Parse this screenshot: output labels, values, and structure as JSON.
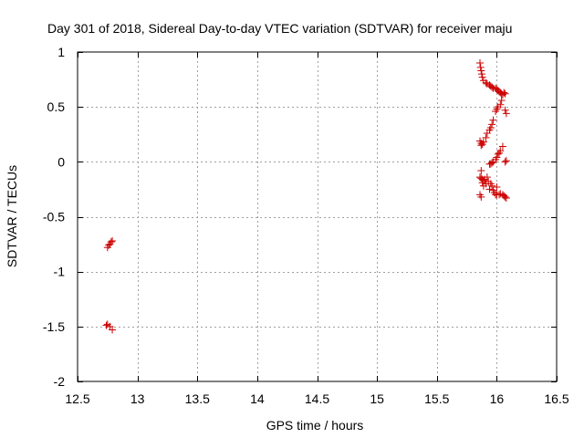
{
  "chart_data": {
    "type": "scatter",
    "title": "Day 301 of 2018, Sidereal Day-to-day VTEC variation (SDTVAR) for receiver maju",
    "xlabel": "GPS time / hours",
    "ylabel": "SDTVAR / TECUs",
    "xlim": [
      12.5,
      16.5
    ],
    "ylim": [
      -2,
      1
    ],
    "xticks": [
      12.5,
      13,
      13.5,
      14,
      14.5,
      15,
      15.5,
      16,
      16.5
    ],
    "xtick_labels": [
      "12.5",
      "13",
      "13.5",
      "14",
      "14.5",
      "15",
      "15.5",
      "16",
      "16.5"
    ],
    "yticks": [
      -2,
      -1.5,
      -1,
      -0.5,
      0,
      0.5,
      1
    ],
    "ytick_labels": [
      "-2",
      "-1.5",
      "-1",
      "-0.5",
      "0",
      "0.5",
      "1"
    ],
    "grid": true,
    "marker": "+",
    "marker_color": "#cc0000",
    "series": [
      {
        "name": "SDTVAR",
        "points": [
          [
            12.75,
            -0.78
          ],
          [
            12.76,
            -0.76
          ],
          [
            12.77,
            -0.75
          ],
          [
            12.78,
            -0.73
          ],
          [
            12.79,
            -0.72
          ],
          [
            12.74,
            -1.49
          ],
          [
            12.75,
            -1.48
          ],
          [
            12.77,
            -1.5
          ],
          [
            12.79,
            -1.53
          ],
          [
            15.86,
            0.9
          ],
          [
            15.865,
            0.86
          ],
          [
            15.87,
            0.83
          ],
          [
            15.875,
            0.8
          ],
          [
            15.88,
            0.77
          ],
          [
            15.89,
            0.74
          ],
          [
            15.91,
            0.72
          ],
          [
            15.92,
            0.71
          ],
          [
            15.94,
            0.7
          ],
          [
            15.95,
            0.69
          ],
          [
            15.96,
            0.68
          ],
          [
            15.97,
            0.67
          ],
          [
            15.99,
            0.67
          ],
          [
            16.0,
            0.66
          ],
          [
            16.01,
            0.65
          ],
          [
            16.02,
            0.64
          ],
          [
            16.03,
            0.63
          ],
          [
            16.04,
            0.62
          ],
          [
            16.05,
            0.61
          ],
          [
            16.06,
            0.63
          ],
          [
            16.07,
            0.62
          ],
          [
            16.04,
            0.56
          ],
          [
            16.03,
            0.52
          ],
          [
            16.07,
            0.47
          ],
          [
            16.08,
            0.44
          ],
          [
            16.01,
            0.5
          ],
          [
            16.0,
            0.48
          ],
          [
            15.99,
            0.46
          ],
          [
            15.97,
            0.38
          ],
          [
            15.96,
            0.34
          ],
          [
            15.95,
            0.31
          ],
          [
            15.94,
            0.29
          ],
          [
            15.92,
            0.26
          ],
          [
            15.91,
            0.22
          ],
          [
            15.86,
            0.19
          ],
          [
            15.87,
            0.17
          ],
          [
            15.88,
            0.16
          ],
          [
            15.89,
            0.18
          ],
          [
            15.87,
            0.15
          ],
          [
            16.05,
            0.14
          ],
          [
            16.03,
            0.1
          ],
          [
            16.02,
            0.08
          ],
          [
            16.01,
            0.07
          ],
          [
            16.0,
            0.04
          ],
          [
            15.99,
            0.02
          ],
          [
            15.97,
            0.0
          ],
          [
            15.96,
            -0.01
          ],
          [
            15.95,
            -0.02
          ],
          [
            15.94,
            -0.02
          ],
          [
            16.07,
            0.0
          ],
          [
            16.08,
            0.01
          ],
          [
            15.87,
            -0.08
          ],
          [
            15.86,
            -0.14
          ],
          [
            15.87,
            -0.15
          ],
          [
            15.88,
            -0.16
          ],
          [
            15.89,
            -0.17
          ],
          [
            15.9,
            -0.16
          ],
          [
            15.88,
            -0.19
          ],
          [
            15.89,
            -0.22
          ],
          [
            15.91,
            -0.2
          ],
          [
            15.92,
            -0.14
          ],
          [
            15.93,
            -0.18
          ],
          [
            15.95,
            -0.2
          ],
          [
            15.96,
            -0.22
          ],
          [
            15.94,
            -0.25
          ],
          [
            15.97,
            -0.26
          ],
          [
            15.98,
            -0.28
          ],
          [
            16.0,
            -0.23
          ],
          [
            15.99,
            -0.3
          ],
          [
            16.0,
            -0.3
          ],
          [
            16.02,
            -0.3
          ],
          [
            16.03,
            -0.29
          ],
          [
            16.05,
            -0.3
          ],
          [
            16.06,
            -0.31
          ],
          [
            16.07,
            -0.32
          ],
          [
            16.08,
            -0.33
          ],
          [
            15.86,
            -0.3
          ],
          [
            15.87,
            -0.32
          ]
        ]
      }
    ]
  }
}
